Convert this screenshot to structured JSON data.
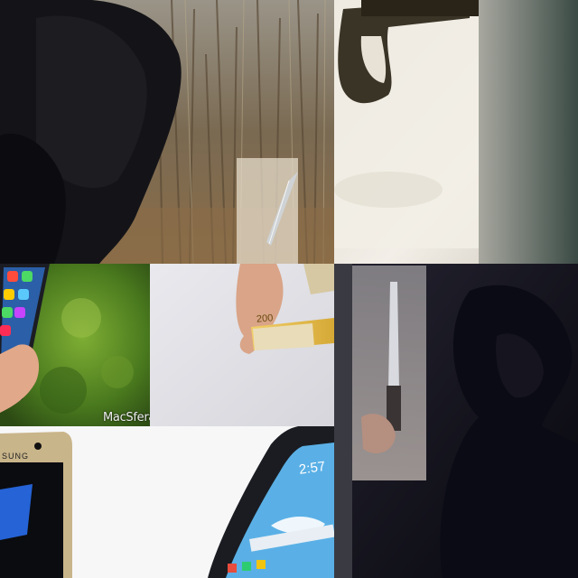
{
  "collage": {
    "tiles": [
      {
        "id": "hooded-figure-field"
      },
      {
        "id": "pistol-snow"
      },
      {
        "id": "phone-hand-green"
      },
      {
        "id": "hand-banknote"
      },
      {
        "id": "smartphones"
      },
      {
        "id": "dark-knife-figure"
      }
    ]
  },
  "texts": {
    "watermark": "MacSfera",
    "banknote_value": "200",
    "phone_clock": "2:57",
    "samsung_label": "SUNG"
  },
  "colors": {
    "field_grass": "#7a6a52",
    "snow": "#e8e4de",
    "green_bokeh": "#4a7a1e",
    "banknote": "#e2b94a",
    "dark_scene": "#0e0d18",
    "phone_screen": "#2a64b8"
  }
}
